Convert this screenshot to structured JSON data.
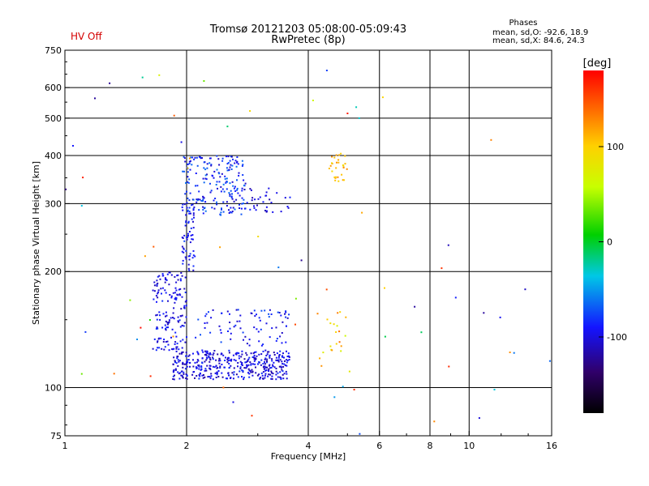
{
  "header": {
    "status": "HV Off",
    "status_color": "#d40000",
    "title_line1": "Tromsø 20121203 05:08:00-05:09:43",
    "title_line2": "RwPretec (8p)",
    "stats_heading": "Phases",
    "stats_o": "mean, sd,O: -92.6, 18.9",
    "stats_x": "mean, sd,X:  84.6, 24.3"
  },
  "chart_data": {
    "type": "scatter",
    "xlabel": "Frequency [MHz]",
    "ylabel": "Stationary phase Virtual Height [km]",
    "x_scale": "log",
    "y_scale": "log",
    "xlim": [
      1,
      16
    ],
    "ylim": [
      75,
      750
    ],
    "x_ticks": [
      {
        "value": 1,
        "label": "1"
      },
      {
        "value": 2,
        "label": "2"
      },
      {
        "value": 4,
        "label": "4"
      },
      {
        "value": 6,
        "label": "6"
      },
      {
        "value": 8,
        "label": "8"
      },
      {
        "value": 10,
        "label": "10"
      },
      {
        "value": 16,
        "label": "16"
      }
    ],
    "x_gridlines": [
      2,
      4,
      6,
      8,
      10
    ],
    "y_ticks": [
      {
        "value": 75,
        "label": "75"
      },
      {
        "value": 100,
        "label": "100"
      },
      {
        "value": 200,
        "label": "200"
      },
      {
        "value": 300,
        "label": "300"
      },
      {
        "value": 400,
        "label": "400"
      },
      {
        "value": 500,
        "label": "500"
      },
      {
        "value": 600,
        "label": "600"
      },
      {
        "value": 750,
        "label": "750"
      }
    ],
    "y_gridlines": [
      100,
      200,
      300,
      400,
      500,
      600
    ],
    "grid": true,
    "colorbar": {
      "label": "[deg]",
      "range": [
        -180,
        180
      ],
      "ticks": [
        {
          "value": 100,
          "label": "100"
        },
        {
          "value": 0,
          "label": "0"
        },
        {
          "value": -100,
          "label": "-100"
        }
      ]
    },
    "point_groups": [
      {
        "x": [
          1.85,
          3.6
        ],
        "y": [
          105,
          125
        ],
        "phase": [
          -120,
          -80
        ],
        "count": 420
      },
      {
        "x": [
          1.65,
          2.0
        ],
        "y": [
          125,
          200
        ],
        "phase": [
          -115,
          -80
        ],
        "count": 160
      },
      {
        "x": [
          1.95,
          2.1
        ],
        "y": [
          200,
          300
        ],
        "phase": [
          -110,
          -75
        ],
        "count": 60
      },
      {
        "x": [
          1.95,
          2.8
        ],
        "y": [
          280,
          400
        ],
        "phase": [
          -110,
          -60
        ],
        "count": 200
      },
      {
        "x": [
          2.1,
          3.6
        ],
        "y": [
          128,
          160
        ],
        "phase": [
          -110,
          -70
        ],
        "count": 80
      },
      {
        "x": [
          2.5,
          3.6
        ],
        "y": [
          285,
          330
        ],
        "phase": [
          -115,
          -85
        ],
        "count": 40
      },
      {
        "x": [
          4.5,
          5.0
        ],
        "y": [
          340,
          405
        ],
        "phase": [
          90,
          130
        ],
        "count": 30
      },
      {
        "x": [
          4.2,
          5.0
        ],
        "y": [
          115,
          160
        ],
        "phase": [
          60,
          140
        ],
        "count": 20
      },
      {
        "x": [
          1.0,
          16.0
        ],
        "y": [
          75,
          700
        ],
        "phase": [
          -140,
          180
        ],
        "count": 70
      }
    ]
  }
}
